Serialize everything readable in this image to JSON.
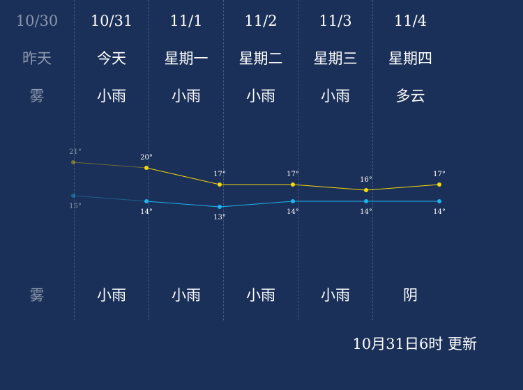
{
  "days": [
    {
      "date": "10/30",
      "weekday": "昨天",
      "day_weather": "雾",
      "night_weather": "雾",
      "past": true
    },
    {
      "date": "10/31",
      "weekday": "今天",
      "day_weather": "小雨",
      "night_weather": "小雨",
      "past": false
    },
    {
      "date": "11/1",
      "weekday": "星期一",
      "day_weather": "小雨",
      "night_weather": "小雨",
      "past": false
    },
    {
      "date": "11/2",
      "weekday": "星期二",
      "day_weather": "小雨",
      "night_weather": "小雨",
      "past": false
    },
    {
      "date": "11/3",
      "weekday": "星期三",
      "day_weather": "小雨",
      "night_weather": "小雨",
      "past": false
    },
    {
      "date": "11/4",
      "weekday": "星期四",
      "day_weather": "多云",
      "night_weather": "阴",
      "past": false
    }
  ],
  "chart_data": {
    "type": "line",
    "categories": [
      "10/30",
      "10/31",
      "11/1",
      "11/2",
      "11/3",
      "11/4"
    ],
    "unit": "°",
    "series": [
      {
        "values": [
          21,
          20,
          17,
          17,
          16,
          17
        ],
        "color": "#f5d90a"
      },
      {
        "values": [
          15,
          14,
          13,
          14,
          14,
          14
        ],
        "color": "#1eb4f0"
      }
    ]
  },
  "updated": "10月31日6时 更新",
  "colors": {
    "background": "#1b3058",
    "past_text": "#8a97ad",
    "high_line": "#f5d90a",
    "low_line": "#1eb4f0"
  }
}
